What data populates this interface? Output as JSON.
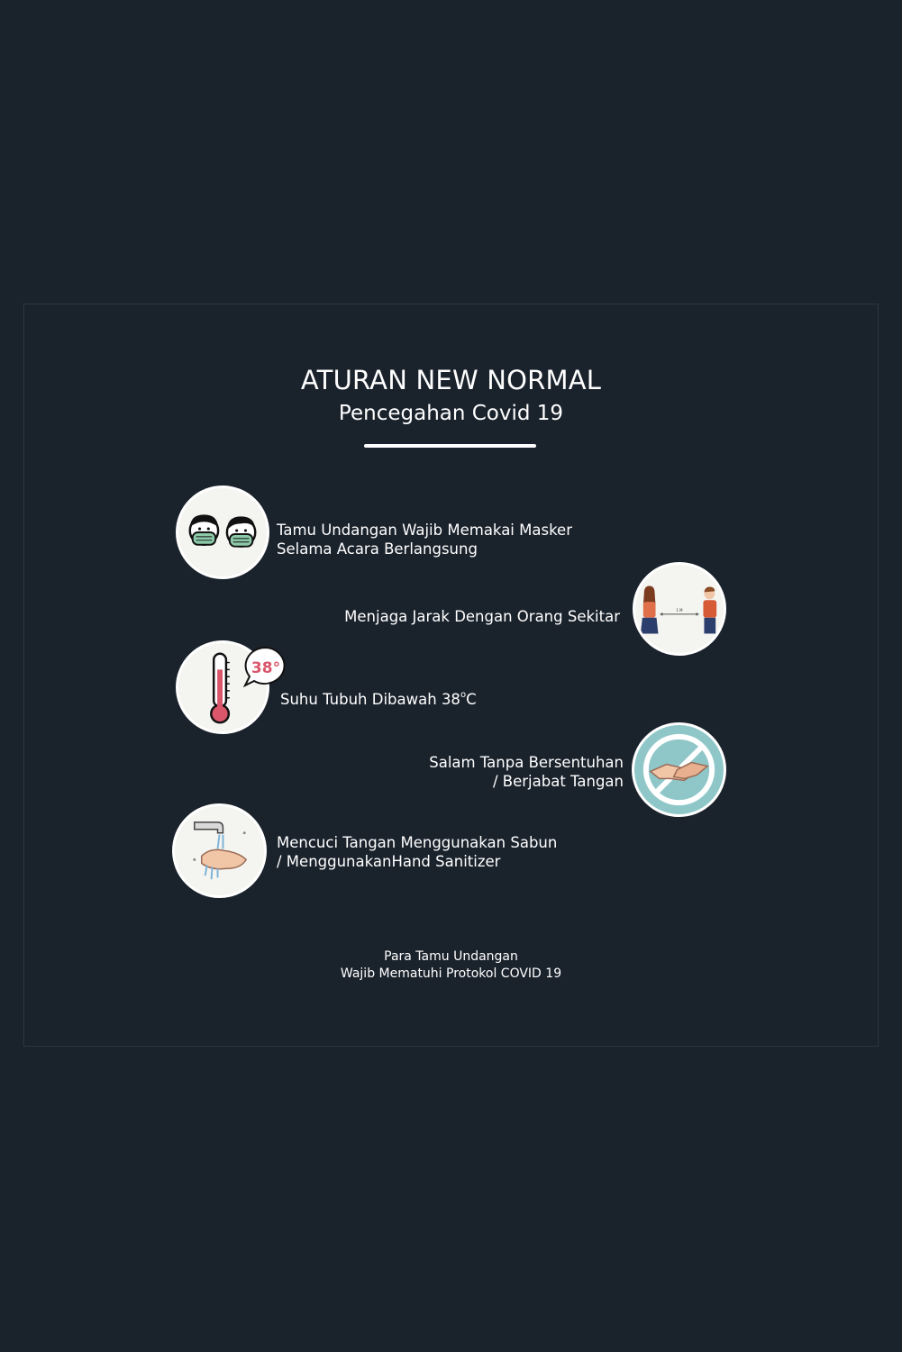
{
  "title": "ATURAN NEW NORMAL",
  "subtitle": "Pencegahan Covid 19",
  "rules": [
    {
      "icon": "face-mask-icon",
      "line1": "Tamu Undangan Wajib Memakai Masker",
      "line2": "Selama Acara Berlangsung"
    },
    {
      "icon": "social-distance-icon",
      "line1": "Menjaga Jarak Dengan Orang Sekitar",
      "distance_label": "1 M"
    },
    {
      "icon": "thermometer-icon",
      "text_before": "Suhu Tubuh Dibawah 38",
      "degree": "o",
      "text_after": "C",
      "bubble": "38°"
    },
    {
      "icon": "no-handshake-icon",
      "line1": "Salam Tanpa Bersentuhan",
      "line2": "/ Berjabat Tangan"
    },
    {
      "icon": "hand-washing-icon",
      "line1": "Mencuci Tangan Menggunakan Sabun",
      "line2": "/ MenggunakanHand Sanitizer"
    }
  ],
  "footer": {
    "line1": "Para Tamu Undangan",
    "line2": "Wajib Mematuhi Protokol COVID 19"
  },
  "colors": {
    "background": "#1a222c",
    "text": "#ffffff",
    "mask": "#8cc9a8",
    "thermo": "#d9566b",
    "no_sign": "#8fc7c9"
  }
}
